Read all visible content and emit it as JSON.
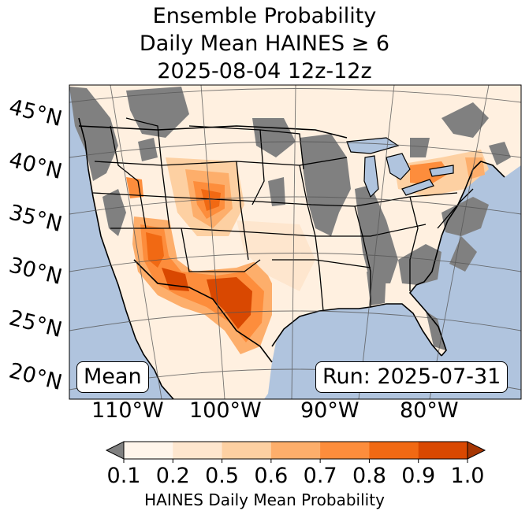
{
  "title": {
    "line1": "Ensemble Probability",
    "line2": "Daily Mean HAINES ≥ 6",
    "line3": "2025-08-04 12z-12z"
  },
  "latitude_labels": [
    "45°N",
    "40°N",
    "35°N",
    "30°N",
    "25°N",
    "20°N"
  ],
  "longitude_labels": [
    "110°W",
    "100°W",
    "90°W",
    "80°W"
  ],
  "boxes": {
    "left": "Mean",
    "right": "Run: 2025-07-31"
  },
  "colorbar": {
    "ticks": [
      "0.1",
      "0.2",
      "0.5",
      "0.6",
      "0.7",
      "0.8",
      "0.9",
      "1.0"
    ],
    "colors": [
      "#fff5eb",
      "#fee6ce",
      "#fdd0a2",
      "#fdae6b",
      "#fd8d3c",
      "#f16913",
      "#d94801"
    ],
    "under_color": "#808080",
    "over_color": "#a63603",
    "label": "HAINES Daily Mean Probability"
  },
  "map_colors": {
    "ocean": "#b0c4de",
    "lakes": "#b0c4de",
    "no_data": "#808080"
  }
}
